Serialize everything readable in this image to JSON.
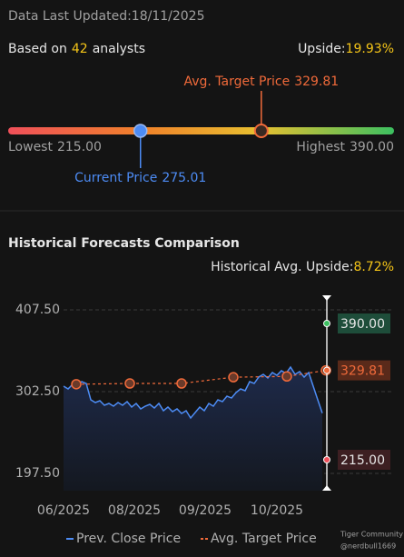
{
  "header": {
    "label": "Data Last Updated:",
    "date": "18/11/2025"
  },
  "analysts": {
    "prefix": "Based on",
    "count": "42",
    "suffix": "analysts",
    "upside_label": "Upside:",
    "upside": "19.93%"
  },
  "range": {
    "lowest": {
      "label": "Lowest",
      "value": 215,
      "value_label": "215.00"
    },
    "highest": {
      "label": "Highest",
      "value": 390,
      "value_label": "390.00"
    },
    "current": {
      "label": "Current Price",
      "value": 275.01,
      "value_label": "275.01"
    },
    "target": {
      "label": "Avg. Target Price",
      "value": 329.81,
      "value_label": "329.81"
    }
  },
  "history": {
    "title": "Historical Forecasts Comparison",
    "upside_label": "Historical Avg. Upside:",
    "upside": "8.72%"
  },
  "chart_data": {
    "type": "line",
    "xlim": [
      0,
      58
    ],
    "xticks": [
      {
        "value": 0,
        "label": "06/2025"
      },
      {
        "value": 15.6,
        "label": "08/2025"
      },
      {
        "value": 31.2,
        "label": "09/2025"
      },
      {
        "value": 47,
        "label": "10/2025"
      }
    ],
    "ylim": [
      175.3,
      426.2
    ],
    "yticks": [
      {
        "value": 197.5,
        "label": "197.50"
      },
      {
        "value": 302.5,
        "label": "302.50"
      },
      {
        "value": 407.5,
        "label": "407.50"
      }
    ],
    "grid": true,
    "series": [
      {
        "name": "Prev. Close Price",
        "color": "#4d8cf5",
        "x": [
          0,
          1,
          2,
          3,
          4,
          5,
          6,
          7,
          8,
          9,
          10,
          11,
          12,
          13,
          14,
          15,
          16,
          17,
          18,
          19,
          20,
          21,
          22,
          23,
          24,
          25,
          26,
          27,
          28,
          29,
          30,
          31,
          32,
          33,
          34,
          35,
          36,
          37,
          38,
          39,
          40,
          41,
          42,
          43,
          44,
          45,
          46,
          47,
          48,
          49,
          50,
          51,
          52,
          53,
          54,
          55,
          56,
          57
        ],
        "values": [
          309.5,
          306.0,
          311.8,
          309.5,
          315.3,
          313.0,
          292.0,
          288.5,
          290.8,
          285.0,
          287.3,
          283.8,
          288.5,
          285.0,
          289.7,
          282.7,
          287.3,
          280.3,
          283.8,
          286.2,
          281.5,
          287.3,
          278.0,
          282.7,
          276.8,
          280.3,
          274.5,
          278.0,
          268.7,
          275.7,
          282.7,
          278.0,
          287.3,
          283.8,
          292.0,
          289.7,
          296.7,
          294.3,
          301.3,
          306.0,
          303.7,
          315.3,
          313.0,
          321.2,
          324.7,
          320.0,
          327.0,
          323.5,
          329.3,
          325.8,
          334.0,
          324.7,
          328.2,
          321.2,
          327.0,
          309.5,
          292.0,
          275.01
        ]
      },
      {
        "name": "Avg. Target Price",
        "color": "#f06a3a",
        "dashed": true,
        "x": [
          2.8,
          14.6,
          26,
          37.4,
          49.2,
          57.8
        ],
        "values": [
          312,
          313,
          313,
          321,
          322,
          329.81
        ]
      }
    ]
  }
}
